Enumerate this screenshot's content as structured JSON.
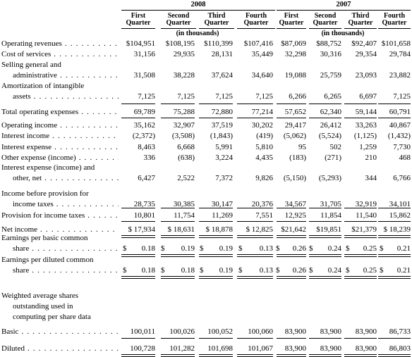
{
  "years": [
    "2008",
    "2007"
  ],
  "quarters": [
    [
      "First",
      "Quarter"
    ],
    [
      "Second",
      "Quarter"
    ],
    [
      "Third",
      "Quarter"
    ],
    [
      "Fourth",
      "Quarter"
    ],
    [
      "First",
      "Quarter"
    ],
    [
      "Second",
      "Quarter"
    ],
    [
      "Third",
      "Quarter"
    ],
    [
      "Fourth",
      "Quarter"
    ]
  ],
  "unit": "(in thousands)",
  "dollar_sign": "$",
  "rows": [
    {
      "label": [
        "Operating revenues"
      ],
      "dots": true,
      "values": [
        "$104,951",
        "$108,195",
        "$110,399",
        "$107,416",
        "$87,069",
        "$88,752",
        "$92,407",
        "$101,658"
      ]
    },
    {
      "label": [
        "Cost of services"
      ],
      "dots": true,
      "values": [
        "31,156",
        "29,935",
        "28,131",
        "35,449",
        "32,298",
        "30,316",
        "29,354",
        "29,784"
      ]
    },
    {
      "label": [
        "Selling general and",
        "administrative"
      ],
      "dots": true,
      "values": [
        "31,508",
        "38,228",
        "37,624",
        "34,640",
        "19,088",
        "25,759",
        "23,093",
        "23,882"
      ]
    },
    {
      "label": [
        "Amortization of intangible",
        "assets"
      ],
      "dots": true,
      "values": [
        "7,125",
        "7,125",
        "7,125",
        "7,125",
        "6,266",
        "6,265",
        "6,697",
        "7,125"
      ]
    },
    {
      "label": [
        "Total operating expenses"
      ],
      "dots": true,
      "values": [
        "69,789",
        "75,288",
        "72,880",
        "77,214",
        "57,652",
        "62,340",
        "59,144",
        "60,791"
      ]
    },
    {
      "label": [
        "Operating income"
      ],
      "dots": true,
      "values": [
        "35,162",
        "32,907",
        "37,519",
        "30,202",
        "29,417",
        "26,412",
        "33,263",
        "40,867"
      ]
    },
    {
      "label": [
        "Interest income"
      ],
      "dots": true,
      "values": [
        "(2,372)",
        "(3,508)",
        "(1,843)",
        "(419)",
        "(5,062)",
        "(5,524)",
        "(1,125)",
        "(1,432)"
      ]
    },
    {
      "label": [
        "Interest expense"
      ],
      "dots": true,
      "values": [
        "8,463",
        "6,668",
        "5,991",
        "5,810",
        "95",
        "502",
        "1,259",
        "7,730"
      ]
    },
    {
      "label": [
        "Other expense (income)"
      ],
      "dots": true,
      "values": [
        "336",
        "(638)",
        "3,224",
        "4,435",
        "(183)",
        "(271)",
        "210",
        "468"
      ]
    },
    {
      "label": [
        "Interest expense (income) and",
        "other, net"
      ],
      "dots": true,
      "values": [
        "6,427",
        "2,522",
        "7,372",
        "9,826",
        "(5,150)",
        "(5,293)",
        "344",
        "6,766"
      ]
    },
    {
      "label": [
        "Income before provision for",
        "income taxes"
      ],
      "dots": true,
      "values": [
        "28,735",
        "30,385",
        "30,147",
        "20,376",
        "34,567",
        "31,705",
        "32,919",
        "34,101"
      ]
    },
    {
      "label": [
        "Provision for income taxes"
      ],
      "dots": true,
      "values": [
        "10,801",
        "11,754",
        "11,269",
        "7,551",
        "12,925",
        "11,854",
        "11,540",
        "15,862"
      ]
    },
    {
      "label": [
        "Net income"
      ],
      "dots": true,
      "values": [
        "$ 17,934",
        "$ 18,631",
        "$ 18,878",
        "$ 12,825",
        "$21,642",
        "$19,851",
        "$21,379",
        "$ 18,239"
      ]
    },
    {
      "label": [
        "Earnings per basic common",
        "share"
      ],
      "dots": true,
      "values": [
        "0.18",
        "0.19",
        "0.19",
        "0.13",
        "0.26",
        "0.24",
        "0.25",
        "0.21"
      ]
    },
    {
      "label": [
        "Earnings per diluted common",
        "share"
      ],
      "dots": true,
      "values": [
        "0.18",
        "0.18",
        "0.19",
        "0.13",
        "0.26",
        "0.24",
        "0.25",
        "0.21"
      ]
    },
    {
      "label": [
        "Weighted average shares",
        "outstanding used in",
        "computing per share data"
      ],
      "dots": false,
      "values": []
    },
    {
      "label": [
        "Basic"
      ],
      "dots": true,
      "values": [
        "100,011",
        "100,026",
        "100,052",
        "100,060",
        "83,900",
        "83,900",
        "83,900",
        "86,733"
      ]
    },
    {
      "label": [
        "Diluted"
      ],
      "dots": true,
      "values": [
        "100,728",
        "101,282",
        "101,698",
        "101,067",
        "83,900",
        "83,900",
        "83,900",
        "86,803"
      ]
    }
  ]
}
